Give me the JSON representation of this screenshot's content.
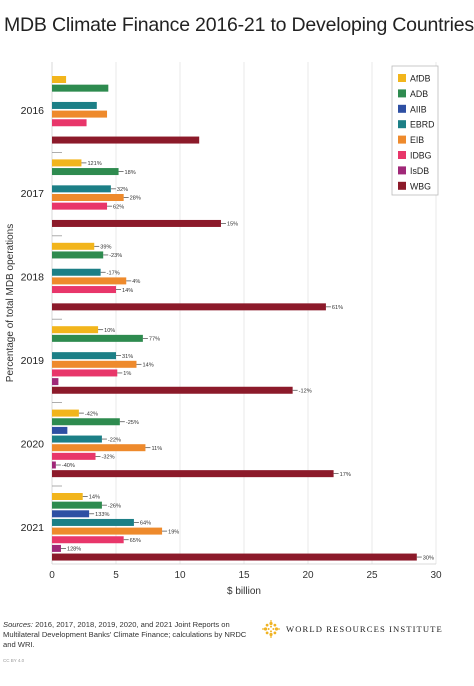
{
  "title": "MDB Climate Finance 2016-21 to Developing Countries",
  "chart_data": {
    "type": "bar",
    "orientation": "horizontal",
    "xlabel": "$ billion",
    "ylabel": "Percentage of total MDB operations",
    "xlim": [
      0,
      30
    ],
    "xticks": [
      "0",
      "5",
      "10",
      "15",
      "20",
      "25",
      "30"
    ],
    "grid": true,
    "legend_position": "top-right",
    "categories": [
      "2016",
      "2017",
      "2018",
      "2019",
      "2020",
      "2021"
    ],
    "series": [
      {
        "name": "AfDB",
        "color": "#f2b51c",
        "values": [
          1.1,
          2.3,
          3.3,
          3.6,
          2.1,
          2.4
        ],
        "labels": [
          "",
          "121%",
          "39%",
          "10%",
          "-42%",
          "14%"
        ]
      },
      {
        "name": "ADB",
        "color": "#2e8b4f",
        "values": [
          4.4,
          5.2,
          4.0,
          7.1,
          5.3,
          3.9
        ],
        "labels": [
          "",
          "18%",
          "-23%",
          "77%",
          "-25%",
          "-26%"
        ]
      },
      {
        "name": "AIIB",
        "color": "#2e4fa3",
        "values": [
          0,
          0,
          0,
          0,
          1.2,
          2.9
        ],
        "labels": [
          "",
          "",
          "",
          "",
          "",
          "133%"
        ]
      },
      {
        "name": "EBRD",
        "color": "#1c7f86",
        "values": [
          3.5,
          4.6,
          3.8,
          5.0,
          3.9,
          6.4
        ],
        "labels": [
          "",
          "32%",
          "-17%",
          "31%",
          "-22%",
          "64%"
        ]
      },
      {
        "name": "EIB",
        "color": "#ee8a2c",
        "values": [
          4.3,
          5.6,
          5.8,
          6.6,
          7.3,
          8.6
        ],
        "labels": [
          "",
          "28%",
          "4%",
          "14%",
          "11%",
          "19%"
        ]
      },
      {
        "name": "IDBG",
        "color": "#e8366a",
        "values": [
          2.7,
          4.3,
          5.0,
          5.1,
          3.4,
          5.6
        ],
        "labels": [
          "",
          "62%",
          "14%",
          "1%",
          "-32%",
          "65%"
        ]
      },
      {
        "name": "IsDB",
        "color": "#a02878",
        "values": [
          0,
          0,
          0,
          0.5,
          0.3,
          0.7
        ],
        "labels": [
          "",
          "",
          "",
          "",
          "-40%",
          "128%"
        ]
      },
      {
        "name": "WBG",
        "color": "#8c1a2a",
        "values": [
          11.5,
          13.2,
          21.4,
          18.8,
          22.0,
          28.5
        ],
        "labels": [
          "",
          "15%",
          "61%",
          "-12%",
          "17%",
          "30%"
        ]
      }
    ]
  },
  "footer": {
    "source_label": "Sources:",
    "source_text": "2016, 2017, 2018, 2019, 2020, and 2021 Joint Reports on Multilateral Development Banks' Climate Finance; calculations by NRDC and WRI.",
    "credit": "CC BY 4.0",
    "org_name": "WORLD RESOURCES INSTITUTE",
    "org_logo_icon": "wri-flower-icon",
    "org_logo_color": "#f0b323"
  }
}
